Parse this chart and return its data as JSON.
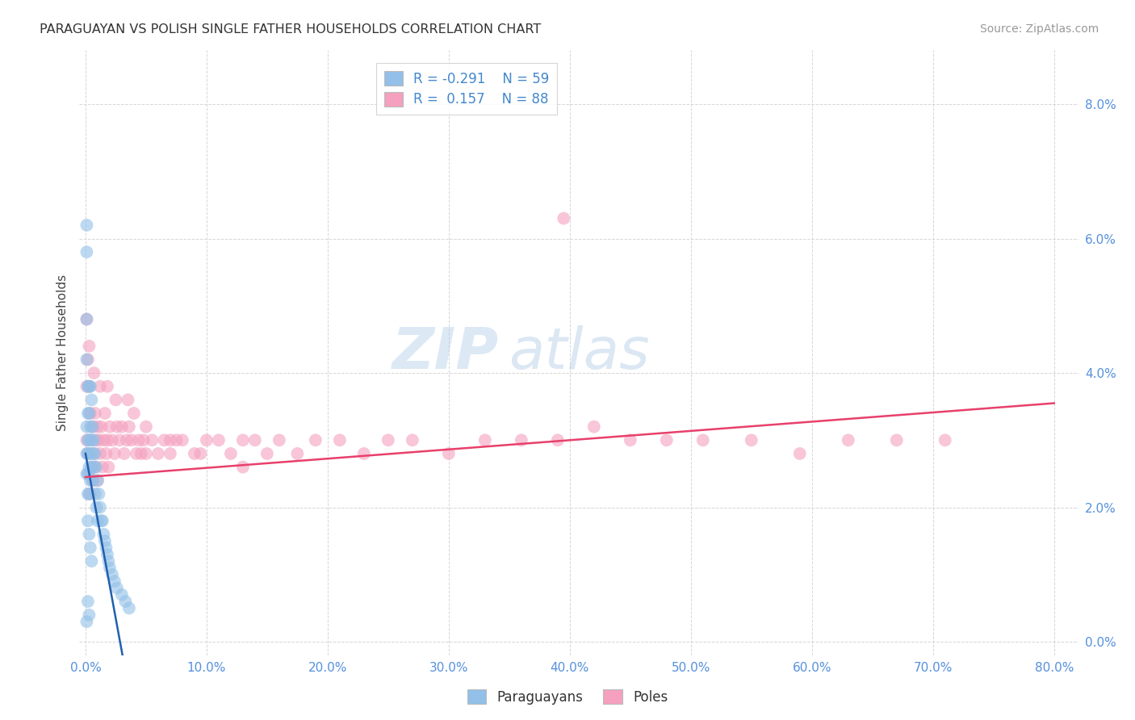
{
  "title": "PARAGUAYAN VS POLISH SINGLE FATHER HOUSEHOLDS CORRELATION CHART",
  "source": "Source: ZipAtlas.com",
  "ylabel": "Single Father Households",
  "xlim": [
    -0.005,
    0.82
  ],
  "ylim": [
    -0.002,
    0.088
  ],
  "legend_blue_R": "-0.291",
  "legend_blue_N": "59",
  "legend_pink_R": "0.157",
  "legend_pink_N": "88",
  "legend_blue_label": "Paraguayans",
  "legend_pink_label": "Poles",
  "blue_color": "#92c0e8",
  "pink_color": "#f4a0be",
  "blue_line_color": "#2060b0",
  "pink_line_color": "#e8406a",
  "watermark_zip": "ZIP",
  "watermark_atlas": "atlas",
  "background_color": "#ffffff",
  "blue_line_x": [
    0.0,
    0.055
  ],
  "blue_line_y": [
    0.028,
    -0.026
  ],
  "pink_line_x": [
    0.0,
    0.8
  ],
  "pink_line_y": [
    0.0245,
    0.0355
  ],
  "paraguayan_x": [
    0.001,
    0.001,
    0.001,
    0.001,
    0.001,
    0.002,
    0.002,
    0.002,
    0.002,
    0.002,
    0.002,
    0.003,
    0.003,
    0.003,
    0.003,
    0.003,
    0.004,
    0.004,
    0.004,
    0.004,
    0.005,
    0.005,
    0.005,
    0.006,
    0.006,
    0.006,
    0.007,
    0.007,
    0.008,
    0.008,
    0.009,
    0.009,
    0.01,
    0.01,
    0.011,
    0.012,
    0.013,
    0.014,
    0.015,
    0.016,
    0.017,
    0.018,
    0.019,
    0.02,
    0.022,
    0.024,
    0.026,
    0.03,
    0.033,
    0.036,
    0.001,
    0.001,
    0.002,
    0.003,
    0.004,
    0.005,
    0.002,
    0.003,
    0.001
  ],
  "paraguayan_y": [
    0.062,
    0.058,
    0.032,
    0.028,
    0.025,
    0.038,
    0.034,
    0.03,
    0.028,
    0.025,
    0.022,
    0.038,
    0.034,
    0.03,
    0.026,
    0.022,
    0.038,
    0.032,
    0.028,
    0.024,
    0.036,
    0.03,
    0.026,
    0.032,
    0.028,
    0.024,
    0.03,
    0.026,
    0.028,
    0.022,
    0.026,
    0.02,
    0.024,
    0.018,
    0.022,
    0.02,
    0.018,
    0.018,
    0.016,
    0.015,
    0.014,
    0.013,
    0.012,
    0.011,
    0.01,
    0.009,
    0.008,
    0.007,
    0.006,
    0.005,
    0.048,
    0.042,
    0.018,
    0.016,
    0.014,
    0.012,
    0.006,
    0.004,
    0.003
  ],
  "polish_x": [
    0.001,
    0.001,
    0.002,
    0.002,
    0.003,
    0.003,
    0.004,
    0.004,
    0.005,
    0.005,
    0.006,
    0.006,
    0.007,
    0.008,
    0.008,
    0.009,
    0.01,
    0.01,
    0.011,
    0.012,
    0.013,
    0.014,
    0.015,
    0.016,
    0.017,
    0.018,
    0.019,
    0.02,
    0.022,
    0.024,
    0.026,
    0.028,
    0.03,
    0.032,
    0.034,
    0.036,
    0.038,
    0.04,
    0.042,
    0.044,
    0.046,
    0.048,
    0.05,
    0.055,
    0.06,
    0.065,
    0.07,
    0.075,
    0.08,
    0.09,
    0.1,
    0.11,
    0.12,
    0.13,
    0.14,
    0.15,
    0.16,
    0.175,
    0.19,
    0.21,
    0.23,
    0.25,
    0.27,
    0.3,
    0.33,
    0.36,
    0.39,
    0.42,
    0.45,
    0.48,
    0.51,
    0.55,
    0.59,
    0.63,
    0.67,
    0.71,
    0.395,
    0.001,
    0.003,
    0.007,
    0.012,
    0.018,
    0.025,
    0.035,
    0.05,
    0.07,
    0.095,
    0.13
  ],
  "polish_y": [
    0.038,
    0.03,
    0.042,
    0.028,
    0.038,
    0.025,
    0.034,
    0.022,
    0.03,
    0.026,
    0.032,
    0.024,
    0.028,
    0.034,
    0.026,
    0.03,
    0.032,
    0.024,
    0.03,
    0.028,
    0.032,
    0.026,
    0.03,
    0.034,
    0.028,
    0.03,
    0.026,
    0.032,
    0.03,
    0.028,
    0.032,
    0.03,
    0.032,
    0.028,
    0.03,
    0.032,
    0.03,
    0.034,
    0.028,
    0.03,
    0.028,
    0.03,
    0.028,
    0.03,
    0.028,
    0.03,
    0.028,
    0.03,
    0.03,
    0.028,
    0.03,
    0.03,
    0.028,
    0.03,
    0.03,
    0.028,
    0.03,
    0.028,
    0.03,
    0.03,
    0.028,
    0.03,
    0.03,
    0.028,
    0.03,
    0.03,
    0.03,
    0.032,
    0.03,
    0.03,
    0.03,
    0.03,
    0.028,
    0.03,
    0.03,
    0.03,
    0.063,
    0.048,
    0.044,
    0.04,
    0.038,
    0.038,
    0.036,
    0.036,
    0.032,
    0.03,
    0.028,
    0.026
  ]
}
